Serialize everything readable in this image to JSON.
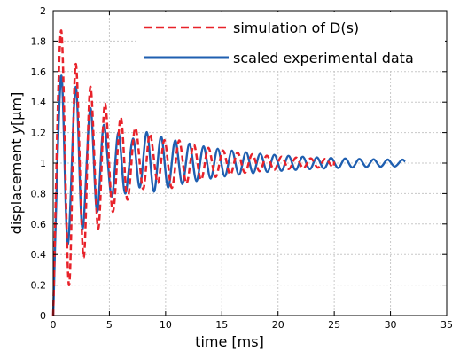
{
  "chart_data": {
    "type": "line",
    "title": "",
    "xlabel": "time [ms]",
    "ylabel_prefix": "displacement ",
    "ylabel_var": "y",
    "ylabel_unit": "[µm]",
    "xlim": [
      0,
      35
    ],
    "ylim": [
      0,
      2
    ],
    "xticks": [
      0,
      5,
      10,
      15,
      20,
      25,
      30,
      35
    ],
    "yticks": [
      0,
      0.2,
      0.4,
      0.6,
      0.8,
      1,
      1.2,
      1.4,
      1.6,
      1.8,
      2
    ],
    "ytick_labels": [
      "0",
      "0.2",
      "0.4",
      "0.6",
      "0.8",
      "1",
      "1.2",
      "1.4",
      "1.6",
      "1.8",
      "2"
    ],
    "grid": true,
    "legend_position": "top-right",
    "series": [
      {
        "name": "simulation of D(s)",
        "style": "dashed",
        "color": "#e8222a",
        "x_start": 0,
        "x_end": 25,
        "steady": 1.0,
        "amplitude": 0.88,
        "period_ms": 1.3,
        "decay_ms": 6.0,
        "peaks": [
          {
            "x": 0.7,
            "y": 1.87
          },
          {
            "x": 1.4,
            "y": 0.2
          },
          {
            "x": 2.0,
            "y": 1.65
          },
          {
            "x": 2.7,
            "y": 0.38
          },
          {
            "x": 3.3,
            "y": 1.5
          },
          {
            "x": 4.0,
            "y": 0.57
          },
          {
            "x": 4.6,
            "y": 1.39
          },
          {
            "x": 5.3,
            "y": 0.68
          },
          {
            "x": 6.0,
            "y": 1.3
          },
          {
            "x": 6.6,
            "y": 0.76
          },
          {
            "x": 7.3,
            "y": 1.23
          },
          {
            "x": 8.0,
            "y": 0.83
          },
          {
            "x": 8.6,
            "y": 1.19
          },
          {
            "x": 9.3,
            "y": 0.87
          },
          {
            "x": 9.9,
            "y": 1.15
          }
        ]
      },
      {
        "name": "scaled experimental data",
        "style": "solid",
        "color": "#1f5fb0",
        "x_start": 0,
        "x_end": 31.3,
        "steady": 1.0,
        "amplitude": 0.58,
        "period_ms": 1.26,
        "decay_ms": 7.5,
        "peaks": [
          {
            "x": 0.7,
            "y": 1.57
          },
          {
            "x": 1.3,
            "y": 0.47
          },
          {
            "x": 2.0,
            "y": 1.5
          },
          {
            "x": 2.6,
            "y": 0.57
          },
          {
            "x": 3.3,
            "y": 1.36
          },
          {
            "x": 3.9,
            "y": 0.68
          },
          {
            "x": 4.5,
            "y": 1.25
          },
          {
            "x": 5.2,
            "y": 0.78
          },
          {
            "x": 5.8,
            "y": 1.2
          },
          {
            "x": 6.4,
            "y": 0.8
          },
          {
            "x": 7.1,
            "y": 1.16
          },
          {
            "x": 7.7,
            "y": 0.84
          }
        ]
      }
    ]
  }
}
